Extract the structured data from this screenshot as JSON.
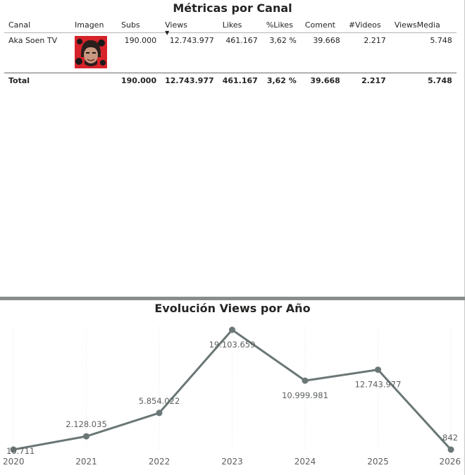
{
  "table_visual": {
    "title": "Métricas por Canal",
    "columns": [
      "Canal",
      "Imagen",
      "Subs",
      "Views",
      "Likes",
      "%Likes",
      "Coment",
      "#Videos",
      "ViewsMedia"
    ],
    "sort_column": "Views",
    "rows": [
      {
        "canal": "Aka Soen TV",
        "subs": "190.000",
        "views": "12.743.977",
        "likes": "461.167",
        "pct_likes": "3,62 %",
        "coment": "39.668",
        "videos": "2.217",
        "views_media": "5.748"
      }
    ],
    "total": {
      "label": "Total",
      "subs": "190.000",
      "views": "12.743.977",
      "likes": "461.167",
      "pct_likes": "3,62 %",
      "coment": "39.668",
      "videos": "2.217",
      "views_media": "5.748"
    }
  },
  "chart_data": {
    "type": "line",
    "title": "Evolución Views por Año",
    "x": [
      "2020",
      "2021",
      "2022",
      "2023",
      "2024",
      "2025",
      "2026"
    ],
    "series": [
      {
        "values": [
          10711,
          2128035,
          5854022,
          19103659,
          10999981,
          12743977,
          842
        ],
        "labels": [
          "10.711",
          "2.128.035",
          "5.854.022",
          "19.103.659",
          "10.999.981",
          "12.743.977",
          "842"
        ]
      }
    ],
    "ylim": [
      0,
      19103659
    ],
    "grid": true,
    "line_color": "#6b7676",
    "label_color": "#5c5f5f"
  }
}
